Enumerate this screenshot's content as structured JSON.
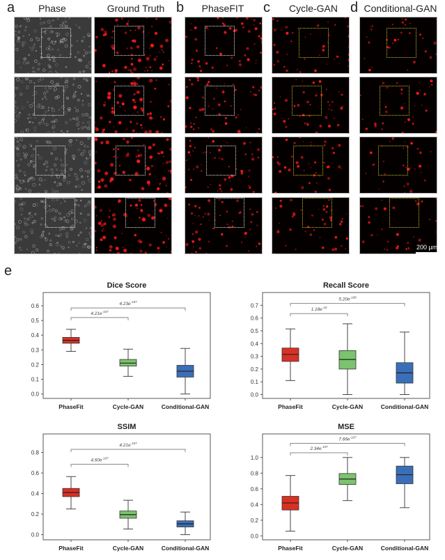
{
  "figure": {
    "panel_a_letter": "a",
    "panel_b_letter": "b",
    "panel_c_letter": "c",
    "panel_d_letter": "d",
    "panel_e_letter": "e",
    "columns": [
      "Phase",
      "Ground Truth",
      "PhaseFIT",
      "Cycle-GAN",
      "Conditional-GAN"
    ],
    "scale_bar_label": "200 µm",
    "colors": {
      "phasefit": "#d93025",
      "cyclegan": "#7cc36e",
      "conditionalgan": "#3a6fb8",
      "roi_white": "#e8e8e8",
      "roi_yellow": "#c8c020",
      "fluor_red": "#ff1a1a"
    }
  },
  "chart_data": [
    {
      "type": "box",
      "title": "Dice Score",
      "categories": [
        "PhaseFit",
        "Cycle-GAN",
        "Conditional-GAN"
      ],
      "ylim": [
        -0.03,
        0.69
      ],
      "yticks": [
        "0.0",
        "0.1",
        "0.2",
        "0.3",
        "0.4",
        "0.5",
        "0.6"
      ],
      "ytick_values": [
        0.0,
        0.1,
        0.2,
        0.3,
        0.4,
        0.5,
        0.6
      ],
      "series": [
        {
          "name": "PhaseFit",
          "whislo": 0.29,
          "q1": 0.345,
          "med": 0.365,
          "q3": 0.385,
          "whishi": 0.44
        },
        {
          "name": "Cycle-GAN",
          "whislo": 0.12,
          "q1": 0.19,
          "med": 0.21,
          "q3": 0.235,
          "whishi": 0.305
        },
        {
          "name": "Conditional-GAN",
          "whislo": 0.0,
          "q1": 0.115,
          "med": 0.155,
          "q3": 0.195,
          "whishi": 0.31
        }
      ],
      "brackets": [
        {
          "from": 0,
          "to": 1,
          "y": 0.52,
          "label": "4.21e",
          "exp": "-107"
        },
        {
          "from": 0,
          "to": 2,
          "y": 0.585,
          "label": "4.23e",
          "exp": "-107"
        }
      ]
    },
    {
      "type": "box",
      "title": "Recall Score",
      "categories": [
        "PhaseFit",
        "Cycle-GAN",
        "Conditional-GAN"
      ],
      "ylim": [
        -0.03,
        0.8
      ],
      "yticks": [
        "0.0",
        "0.1",
        "0.2",
        "0.3",
        "0.4",
        "0.5",
        "0.6",
        "0.7"
      ],
      "ytick_values": [
        0.0,
        0.1,
        0.2,
        0.3,
        0.4,
        0.5,
        0.6,
        0.7
      ],
      "series": [
        {
          "name": "PhaseFit",
          "whislo": 0.11,
          "q1": 0.26,
          "med": 0.315,
          "q3": 0.365,
          "whishi": 0.515
        },
        {
          "name": "Cycle-GAN",
          "whislo": 0.0,
          "q1": 0.2,
          "med": 0.275,
          "q3": 0.345,
          "whishi": 0.555
        },
        {
          "name": "Conditional-GAN",
          "whislo": 0.0,
          "q1": 0.09,
          "med": 0.17,
          "q3": 0.25,
          "whishi": 0.49
        }
      ],
      "brackets": [
        {
          "from": 0,
          "to": 1,
          "y": 0.635,
          "label": "1.18e",
          "exp": "-16"
        },
        {
          "from": 0,
          "to": 2,
          "y": 0.715,
          "label": "5.20e",
          "exp": "-108"
        }
      ]
    },
    {
      "type": "box",
      "title": "SSIM",
      "categories": [
        "PhaseFit",
        "Cycle-GAN",
        "Conditional-GAN"
      ],
      "ylim": [
        -0.05,
        0.98
      ],
      "yticks": [
        "0.0",
        "0.2",
        "0.4",
        "0.6",
        "0.8"
      ],
      "ytick_values": [
        0.0,
        0.2,
        0.4,
        0.6,
        0.8
      ],
      "series": [
        {
          "name": "PhaseFit",
          "whislo": 0.25,
          "q1": 0.37,
          "med": 0.41,
          "q3": 0.45,
          "whishi": 0.565
        },
        {
          "name": "Cycle-GAN",
          "whislo": 0.055,
          "q1": 0.16,
          "med": 0.195,
          "q3": 0.23,
          "whishi": 0.335
        },
        {
          "name": "Conditional-GAN",
          "whislo": 0.0,
          "q1": 0.075,
          "med": 0.105,
          "q3": 0.135,
          "whishi": 0.22
        }
      ],
      "brackets": [
        {
          "from": 0,
          "to": 1,
          "y": 0.685,
          "label": "4.60e",
          "exp": "-107"
        },
        {
          "from": 0,
          "to": 2,
          "y": 0.83,
          "label": "4.21e",
          "exp": "-107"
        }
      ]
    },
    {
      "type": "box",
      "title": "MSE",
      "categories": [
        "PhaseFit",
        "Cycle-GAN",
        "Conditional-GAN"
      ],
      "ylim": [
        -0.05,
        1.3
      ],
      "yticks": [
        "0.0",
        "0.2",
        "0.4",
        "0.6",
        "0.8",
        "1.0"
      ],
      "ytick_values": [
        0.0,
        0.2,
        0.4,
        0.6,
        0.8,
        1.0
      ],
      "series": [
        {
          "name": "PhaseFit",
          "whislo": 0.06,
          "q1": 0.33,
          "med": 0.42,
          "q3": 0.505,
          "whishi": 0.77
        },
        {
          "name": "Cycle-GAN",
          "whislo": 0.45,
          "q1": 0.655,
          "med": 0.725,
          "q3": 0.795,
          "whishi": 1.0
        },
        {
          "name": "Conditional-GAN",
          "whislo": 0.36,
          "q1": 0.665,
          "med": 0.78,
          "q3": 0.89,
          "whishi": 1.0
        }
      ],
      "brackets": [
        {
          "from": 0,
          "to": 1,
          "y": 1.06,
          "label": "2.34e",
          "exp": "-107"
        },
        {
          "from": 0,
          "to": 2,
          "y": 1.18,
          "label": "7.66e",
          "exp": "-107"
        }
      ]
    }
  ]
}
